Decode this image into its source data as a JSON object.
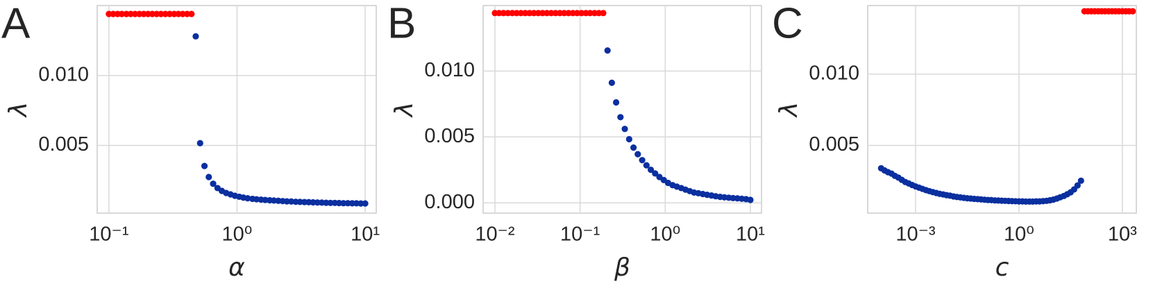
{
  "chart_data": [
    {
      "type": "scatter",
      "panel_label": "A",
      "xlabel": "α",
      "ylabel": "λ",
      "xscale": "log",
      "grid": true,
      "xlim": [
        0.081,
        12.2
      ],
      "ylim": [
        0.00016,
        0.015
      ],
      "xticks": [
        {
          "value": 0.1,
          "label": "10⁻¹"
        },
        {
          "value": 1,
          "label": "10⁰"
        },
        {
          "value": 10,
          "label": "10¹"
        }
      ],
      "yticks": [
        0.005,
        {
          "value": 0.01,
          "label": "0.010"
        }
      ],
      "series": [
        {
          "color": "#ff0000",
          "x": [
            0.1,
            0.108,
            0.117,
            0.126,
            0.137,
            0.148,
            0.16,
            0.173,
            0.187,
            0.202,
            0.218,
            0.236,
            0.255,
            0.276,
            0.298,
            0.323,
            0.349,
            0.377,
            0.408,
            0.441
          ],
          "values": [
            0.0144,
            0.0144,
            0.0144,
            0.0144,
            0.0144,
            0.0144,
            0.0144,
            0.0144,
            0.0144,
            0.0144,
            0.0144,
            0.0144,
            0.0144,
            0.0144,
            0.0144,
            0.0144,
            0.0144,
            0.0144,
            0.0144,
            0.0144
          ]
        },
        {
          "color": "#0b2f9f",
          "x": [
            0.476,
            0.515,
            0.557,
            0.602,
            0.651,
            0.704,
            0.761,
            0.823,
            0.89,
            0.962,
            1.04,
            1.12,
            1.21,
            1.32,
            1.42,
            1.54,
            1.66,
            1.8,
            1.94,
            2.1,
            2.27,
            2.45,
            2.65,
            2.87,
            3.1,
            3.36,
            3.63,
            3.92,
            4.24,
            4.59,
            4.96,
            5.36,
            5.8,
            6.26,
            6.77,
            7.32,
            7.91,
            8.55,
            9.25,
            10.0
          ],
          "values": [
            0.0128,
            0.00516,
            0.00353,
            0.00274,
            0.00226,
            0.00195,
            0.00175,
            0.0016,
            0.0015,
            0.0014,
            0.00133,
            0.00127,
            0.00122,
            0.00118,
            0.00115,
            0.00112,
            0.0011,
            0.00108,
            0.00106,
            0.00104,
            0.00102,
            0.001,
            0.00099,
            0.00097,
            0.00096,
            0.00095,
            0.00094,
            0.00093,
            0.00092,
            0.00091,
            0.0009,
            0.00089,
            0.00089,
            0.00088,
            0.00087,
            0.00087,
            0.00086,
            0.00086,
            0.00085,
            0.00085
          ]
        }
      ]
    },
    {
      "type": "scatter",
      "panel_label": "B",
      "xlabel": "β",
      "ylabel": "λ",
      "xscale": "log",
      "grid": true,
      "xlim": [
        0.00727,
        13.5
      ],
      "ylim": [
        -0.00078,
        0.01497
      ],
      "xticks": [
        {
          "value": 0.01,
          "label": "10⁻²"
        },
        {
          "value": 0.1,
          "label": "10⁻¹"
        },
        {
          "value": 1,
          "label": "10⁰"
        },
        {
          "value": 10,
          "label": "10¹"
        }
      ],
      "yticks": [
        {
          "value": 0,
          "label": "0.000"
        },
        0.005,
        {
          "value": 0.01,
          "label": "0.010"
        }
      ],
      "series": [
        {
          "color": "#ff0000",
          "x": [
            0.01,
            0.0112,
            0.0126,
            0.0142,
            0.016,
            0.018,
            0.0202,
            0.0227,
            0.0255,
            0.0287,
            0.0323,
            0.0363,
            0.0408,
            0.0458,
            0.0515,
            0.0579,
            0.0651,
            0.0732,
            0.0823,
            0.0925,
            0.104,
            0.117,
            0.131,
            0.148,
            0.166,
            0.187
          ],
          "values": [
            0.0144,
            0.0144,
            0.0144,
            0.0144,
            0.0144,
            0.0144,
            0.0144,
            0.0144,
            0.0144,
            0.0144,
            0.0144,
            0.0144,
            0.0144,
            0.0144,
            0.0144,
            0.0144,
            0.0144,
            0.0144,
            0.0144,
            0.0144,
            0.0144,
            0.0144,
            0.0144,
            0.0144,
            0.0144,
            0.0144
          ]
        },
        {
          "color": "#0b2f9f",
          "x": [
            0.21,
            0.236,
            0.265,
            0.298,
            0.335,
            0.377,
            0.424,
            0.476,
            0.536,
            0.602,
            0.677,
            0.761,
            0.855,
            0.962,
            1.08,
            1.22,
            1.37,
            1.54,
            1.73,
            1.94,
            2.18,
            2.45,
            2.76,
            3.1,
            3.49,
            3.92,
            4.41,
            4.95,
            5.57,
            6.26,
            7.04,
            7.91,
            8.9,
            10.0
          ],
          "values": [
            0.01156,
            0.00911,
            0.00762,
            0.0065,
            0.00561,
            0.00483,
            0.00419,
            0.00369,
            0.00324,
            0.00285,
            0.00251,
            0.00223,
            0.00196,
            0.00173,
            0.00151,
            0.00134,
            0.00123,
            0.00112,
            0.001,
            0.00089,
            0.00078,
            0.00073,
            0.00067,
            0.00061,
            0.00056,
            0.0005,
            0.00045,
            0.00042,
            0.00039,
            0.00036,
            0.00034,
            0.00031,
            0.00028,
            0.00022
          ]
        }
      ]
    },
    {
      "type": "scatter",
      "panel_label": "C",
      "xlabel": "c",
      "ylabel": "λ",
      "xscale": "log",
      "grid": true,
      "xlim": [
        4.08e-05,
        2547
      ],
      "ylim": [
        0.00026,
        0.0148
      ],
      "xticks": [
        {
          "value": 0.001,
          "label": "10⁻³"
        },
        {
          "value": 1,
          "label": "10⁰"
        },
        {
          "value": 1000,
          "label": "10³"
        }
      ],
      "yticks": [
        0.005,
        {
          "value": 0.01,
          "label": "0.010"
        }
      ],
      "series": [
        {
          "color": "#ff0000",
          "x": [
            79.4,
            100,
            126,
            158,
            200,
            251,
            316,
            398,
            501,
            631,
            794,
            1000,
            1260,
            1580,
            2000
          ],
          "values": [
            0.0144,
            0.0144,
            0.0144,
            0.0144,
            0.0144,
            0.0144,
            0.0144,
            0.0144,
            0.0144,
            0.0144,
            0.0144,
            0.0144,
            0.0144,
            0.0144,
            0.0144
          ]
        },
        {
          "color": "#0b2f9f",
          "x": [
            0.0001,
            0.000126,
            0.000158,
            0.0002,
            0.000251,
            0.000316,
            0.000398,
            0.000501,
            0.000631,
            0.000794,
            0.001,
            0.00126,
            0.00158,
            0.002,
            0.00251,
            0.00316,
            0.00398,
            0.00501,
            0.00631,
            0.00794,
            0.01,
            0.0126,
            0.0158,
            0.02,
            0.0251,
            0.0316,
            0.0398,
            0.0501,
            0.0631,
            0.0794,
            0.1,
            0.126,
            0.158,
            0.2,
            0.251,
            0.316,
            0.398,
            0.501,
            0.631,
            0.794,
            1,
            1.26,
            1.58,
            2,
            2.51,
            3.16,
            3.98,
            5.01,
            6.31,
            7.94,
            10,
            12.6,
            15.8,
            20,
            25.1,
            31.6,
            39.8,
            50.1,
            63.1
          ],
          "values": [
            0.0034,
            0.00325,
            0.00313,
            0.00303,
            0.00287,
            0.00275,
            0.00259,
            0.00244,
            0.00234,
            0.00223,
            0.00213,
            0.00204,
            0.00196,
            0.00187,
            0.0018,
            0.00173,
            0.00167,
            0.00161,
            0.00157,
            0.00152,
            0.00148,
            0.00143,
            0.00139,
            0.00136,
            0.00133,
            0.0013,
            0.00128,
            0.00126,
            0.00124,
            0.00122,
            0.0012,
            0.00118,
            0.00117,
            0.00115,
            0.00114,
            0.00113,
            0.00112,
            0.00111,
            0.0011,
            0.00109,
            0.00108,
            0.00108,
            0.00107,
            0.00107,
            0.00107,
            0.00108,
            0.00108,
            0.0011,
            0.00112,
            0.00116,
            0.00121,
            0.00128,
            0.00137,
            0.00146,
            0.00158,
            0.00172,
            0.00192,
            0.0022,
            0.00253
          ]
        }
      ]
    }
  ]
}
